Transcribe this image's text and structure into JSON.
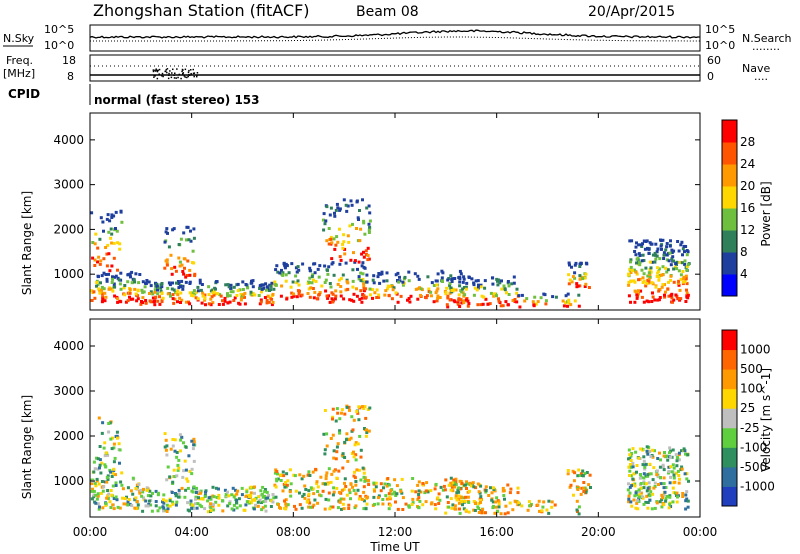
{
  "header": {
    "station": "Zhongshan Station (fitACF)",
    "beam": "Beam 08",
    "date": "20/Apr/2015"
  },
  "top_panel": {
    "left_label": "N.Sky",
    "left_ticks": [
      "10^5",
      "10^0"
    ],
    "right_ticks": [
      "10^5",
      "10^0"
    ],
    "right_label": "N.Search",
    "dots": "........"
  },
  "freq_panel": {
    "left_label_line1": "Freq.",
    "left_label_line2": "[MHz]",
    "left_ticks": [
      "18",
      "8"
    ],
    "right_ticks": [
      "60",
      "0"
    ],
    "right_label": "Nave",
    "dots": "...."
  },
  "cpid": {
    "label": "CPID",
    "mode": "normal (fast stereo) 153"
  },
  "axes": {
    "ylabel": "Slant Range [km]",
    "yticks": [
      "4000",
      "3000",
      "2000",
      "1000"
    ],
    "xticks": [
      "00:00",
      "04:00",
      "08:00",
      "12:00",
      "16:00",
      "20:00",
      "00:00"
    ],
    "xlabel": "Time UT"
  },
  "power_colorbar": {
    "label": "Power [dB]",
    "ticks": [
      "28",
      "24",
      "20",
      "16",
      "12",
      "8",
      "4"
    ],
    "colors": [
      "#0000ff",
      "#1f3f9e",
      "#2f7f5a",
      "#6fbf3f",
      "#ffd700",
      "#ff9900",
      "#ff5500",
      "#ff0000"
    ]
  },
  "velocity_colorbar": {
    "label": "Velocity [m s^-1]",
    "ticks": [
      "1000",
      "500",
      "100",
      "25",
      "-25",
      "-100",
      "-500",
      "-1000"
    ],
    "colors": [
      "#1f3fbf",
      "#2f6f9f",
      "#2f8f5f",
      "#5fcf3f",
      "#bfbfbf",
      "#ffd700",
      "#ff9900",
      "#ff6600",
      "#ff0000"
    ]
  },
  "chart_data": {
    "type": "heatmap",
    "x": [
      "00:00",
      "04:00",
      "08:00",
      "12:00",
      "16:00",
      "20:00",
      "00:00"
    ],
    "xlabel": "Time UT",
    "ylabel": "Slant Range [km]",
    "ylim": [
      200,
      4600
    ],
    "panels": [
      {
        "name": "Power",
        "unit": "dB",
        "range": [
          0,
          32
        ]
      },
      {
        "name": "Velocity",
        "unit": "m s^-1",
        "range": [
          -1000,
          1000
        ]
      }
    ]
  }
}
